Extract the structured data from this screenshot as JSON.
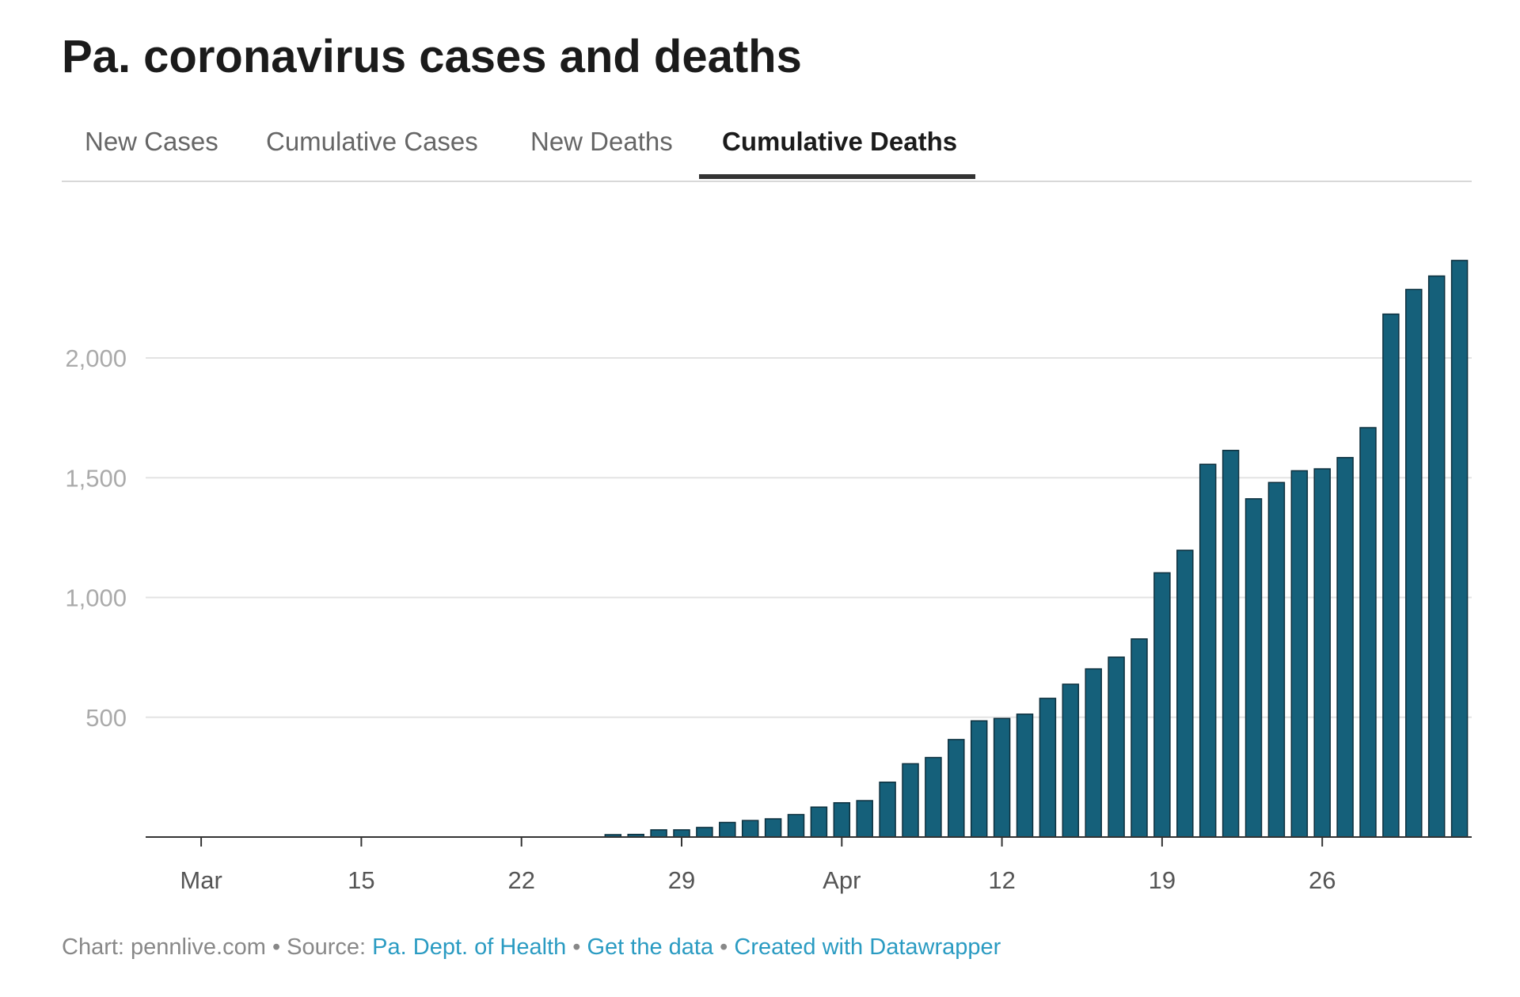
{
  "title": "Pa. coronavirus cases and deaths",
  "tabs": [
    {
      "label": "New Cases",
      "active": false
    },
    {
      "label": "Cumulative Cases",
      "active": false
    },
    {
      "label": "New Deaths",
      "active": false
    },
    {
      "label": "Cumulative Deaths",
      "active": true
    }
  ],
  "chart_data": {
    "type": "bar",
    "title": "Cumulative Deaths",
    "xlabel": "",
    "ylabel": "",
    "ylim": [
      0,
      2450
    ],
    "yticks": [
      500,
      1000,
      1500,
      2000
    ],
    "ytick_labels": [
      "500",
      "1,000",
      "1,500",
      "2,000"
    ],
    "grid": true,
    "bar_color": "#15607a",
    "xticks": [
      {
        "day": -21,
        "label": "Mar"
      },
      {
        "day": -14,
        "label": "15"
      },
      {
        "day": -7,
        "label": "22"
      },
      {
        "day": 0,
        "label": "29"
      },
      {
        "day": 7,
        "label": "Apr"
      },
      {
        "day": 14,
        "label": "12"
      },
      {
        "day": 21,
        "label": "19"
      },
      {
        "day": 28,
        "label": "26"
      }
    ],
    "x_day_reference": "Mar 29",
    "categories": [
      "Mar 26",
      "Mar 27",
      "Mar 28",
      "Mar 29",
      "Mar 30",
      "Mar 31",
      "Apr 1",
      "Apr 2",
      "Apr 3",
      "Apr 4",
      "Apr 5",
      "Apr 6",
      "Apr 7",
      "Apr 8",
      "Apr 9",
      "Apr 10",
      "Apr 11",
      "Apr 12",
      "Apr 13",
      "Apr 14",
      "Apr 15",
      "Apr 16",
      "Apr 17",
      "Apr 18",
      "Apr 19",
      "Apr 20",
      "Apr 21",
      "Apr 22",
      "Apr 23",
      "Apr 24",
      "Apr 25",
      "Apr 26",
      "Apr 27",
      "Apr 28",
      "Apr 29",
      "Apr 30",
      "May 1",
      "May 2"
    ],
    "values": [
      10,
      11,
      30,
      30,
      40,
      61,
      69,
      76,
      94,
      125,
      143,
      152,
      229,
      306,
      332,
      407,
      485,
      495,
      513,
      579,
      638,
      702,
      751,
      827,
      1103,
      1197,
      1556,
      1614,
      1412,
      1480,
      1529,
      1537,
      1584,
      1709,
      2183,
      2286,
      2342,
      2407
    ]
  },
  "footer": {
    "prefix": "Chart: pennlive.com • Source: ",
    "source_link": "Pa. Dept. of Health",
    "sep1": " • ",
    "data_link": "Get the data",
    "sep2": " • ",
    "credit_link": "Created with Datawrapper"
  }
}
